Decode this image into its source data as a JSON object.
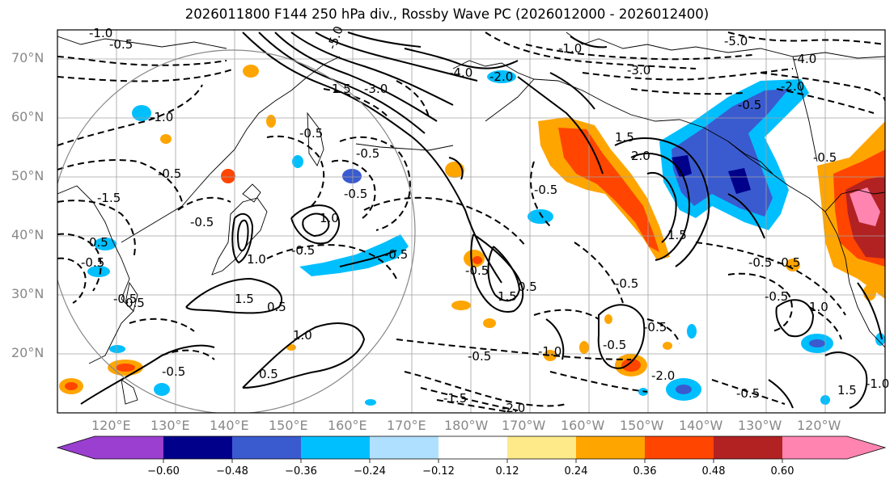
{
  "title": "2026011800 F144 250 hPa div., Rossby Wave PC (2026012000 - 2026012400)",
  "lat_labels": [
    "70°N",
    "60°N",
    "50°N",
    "40°N",
    "30°N",
    "20°N"
  ],
  "lon_labels": [
    "120°E",
    "130°E",
    "140°E",
    "150°E",
    "160°E",
    "170°E",
    "180°W",
    "170°W",
    "160°W",
    "150°W",
    "140°W",
    "130°W",
    "120°W"
  ],
  "colorbar": {
    "ticks": [
      "−0.60",
      "−0.48",
      "−0.36",
      "−0.24",
      "−0.12",
      "0.12",
      "0.24",
      "0.36",
      "0.48",
      "0.60"
    ],
    "colors": [
      "#9a3fd0",
      "#00008b",
      "#3a5bd0",
      "#00bfff",
      "#b0e0ff",
      "#ffffff",
      "#ffea8a",
      "#ffa500",
      "#ff4500",
      "#b22222",
      "#ff85b0"
    ]
  },
  "contour_labels": [
    "-1.0",
    "-0.5",
    "-5.0",
    "1.5",
    "-3.0",
    "-4.0",
    "-2.0",
    "-1.0",
    "-3.0",
    "-5.0",
    "-4.0",
    "-2.0",
    "-0.5",
    "-1.0",
    "-0.5",
    "-0.5",
    "-0.5",
    "1.0",
    "-0.5",
    "-0.5",
    "1.5",
    "0.5",
    "1.0",
    "0.5",
    "-0.5",
    "1.5",
    "0.5",
    "1.5",
    "-0.5",
    "2.0",
    "1.5",
    "-0.5",
    "-0.5",
    "-0.5",
    "-1.0",
    "-1.5",
    "-0.5",
    "-0.5",
    "1.0",
    "-0.5",
    "-0.5",
    "-0.5",
    "-0.5",
    "-0.5",
    "1.0",
    "-1.5",
    "-2.0",
    "-2.0",
    "-0.5",
    "-0.5",
    "-0.5",
    "1.5",
    "-1.0",
    "-0.5",
    "0.5",
    "0.5"
  ]
}
